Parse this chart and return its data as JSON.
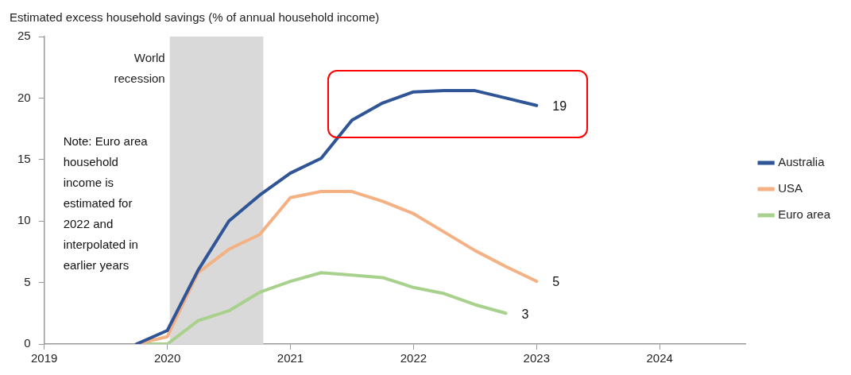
{
  "chart_data": {
    "type": "line",
    "title": "Estimated excess household savings (% of annual household income)",
    "x": [
      2019.75,
      2020,
      2020.25,
      2020.5,
      2020.75,
      2021,
      2021.25,
      2021.5,
      2021.75,
      2022,
      2022.25,
      2022.5,
      2022.75,
      2023
    ],
    "series": [
      {
        "name": "Australia",
        "color": "#2f5597",
        "values": [
          0,
          1.1,
          6.0,
          10.0,
          12.1,
          13.9,
          15.1,
          18.2,
          19.6,
          20.5,
          20.6,
          20.6,
          20.0,
          19.4
        ],
        "value_labels": [
          null,
          null,
          null,
          null,
          null,
          null,
          null,
          null,
          null,
          null,
          null,
          null,
          null,
          "19"
        ]
      },
      {
        "name": "USA",
        "color": "#f4b183",
        "values": [
          0,
          0.6,
          5.8,
          7.7,
          8.9,
          11.9,
          12.4,
          12.4,
          11.6,
          10.6,
          9.1,
          7.6,
          6.3,
          5.1
        ],
        "value_labels": [
          null,
          null,
          null,
          null,
          null,
          null,
          null,
          null,
          null,
          null,
          null,
          null,
          null,
          "5"
        ]
      },
      {
        "name": "Euro area",
        "color": "#a9d18e",
        "values": [
          0,
          0,
          1.9,
          2.7,
          4.2,
          5.1,
          5.8,
          5.6,
          5.4,
          4.6,
          4.1,
          3.2,
          2.5,
          null
        ],
        "value_labels": [
          null,
          null,
          null,
          null,
          null,
          null,
          null,
          null,
          null,
          null,
          null,
          null,
          "3",
          null
        ]
      }
    ],
    "xlim": [
      2019,
      2024.7
    ],
    "xticks": [
      2019,
      2020,
      2021,
      2022,
      2023,
      2024
    ],
    "ylim": [
      0,
      25
    ],
    "yticks": [
      0,
      5,
      10,
      15,
      20,
      25
    ],
    "bands": [
      {
        "axis": "x",
        "from": 2020.02,
        "to": 2020.78,
        "label": "World recession",
        "color": "#d9d9d9"
      }
    ],
    "annotations": [
      "Note: Euro area household income is estimated for 2022 and interpolated in earlier years"
    ],
    "grid": false,
    "legend": "right",
    "marker": "none",
    "line_style": "solid"
  }
}
